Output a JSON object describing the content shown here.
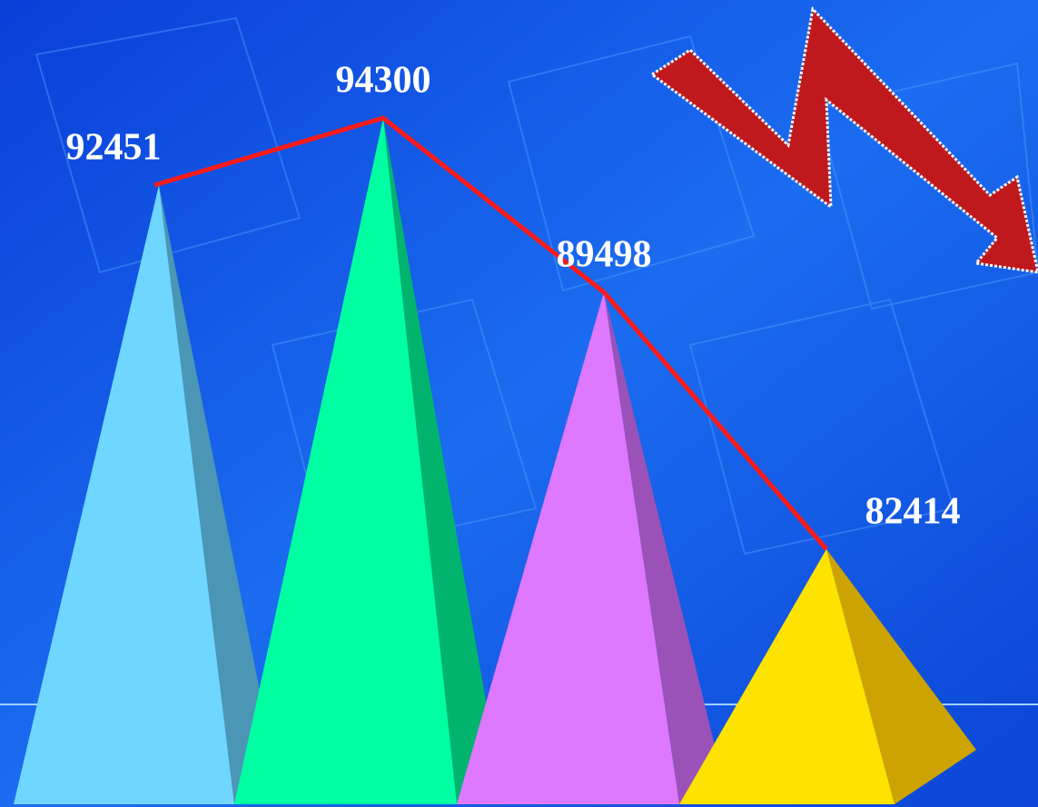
{
  "chart_data": {
    "type": "pyramid",
    "values": [
      92451,
      94300,
      89498,
      82414
    ],
    "colors": [
      "#6fd6ff",
      "#00ffa2",
      "#de78ff",
      "#ffe300"
    ],
    "side_colors": [
      "#4a96b4",
      "#00b46e",
      "#9a52b8",
      "#cca300"
    ],
    "line_color": "#ff1a1a"
  }
}
